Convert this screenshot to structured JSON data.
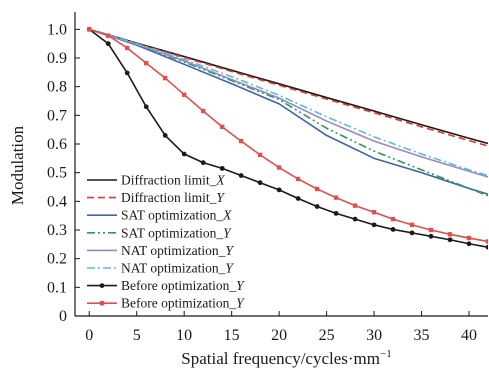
{
  "chart_data": {
    "type": "line",
    "xlabel": "Spatial frequency/cycles·mm",
    "xlabel_sup": "−1",
    "ylabel": "Modulation",
    "xlim": [
      -1.5,
      42
    ],
    "ylim": [
      0,
      1.05
    ],
    "x_ticks": [
      0,
      5,
      10,
      15,
      20,
      25,
      30,
      35,
      40
    ],
    "x_tick_labels": [
      "0",
      "5",
      "10",
      "15",
      "20",
      "25",
      "30",
      "35",
      "40"
    ],
    "y_ticks": [
      0,
      0.1,
      0.2,
      0.3,
      0.4,
      0.5,
      0.6,
      0.7,
      0.8,
      0.9,
      1.0
    ],
    "y_tick_labels": [
      "0",
      "0.1",
      "0.2",
      "0.3",
      "0.4",
      "0.5",
      "0.6",
      "0.7",
      "0.8",
      "0.9",
      "1.0"
    ],
    "grid": false,
    "legend_position": "bottom-left",
    "series": [
      {
        "name": "Diffraction limit_",
        "name_italic": "X",
        "color": "#1a1a1a",
        "dash": "solid",
        "marker": "none",
        "x": [
          0,
          5,
          10,
          15,
          20,
          25,
          30,
          35,
          40,
          42
        ],
        "y": [
          1.0,
          0.952,
          0.905,
          0.857,
          0.81,
          0.762,
          0.715,
          0.667,
          0.62,
          0.602
        ]
      },
      {
        "name": "Diffraction limit_",
        "name_italic": "Y",
        "color": "#e0382c",
        "dash": "dashed",
        "marker": "none",
        "x": [
          0,
          5,
          10,
          15,
          20,
          25,
          30,
          35,
          40,
          42
        ],
        "y": [
          1.0,
          0.95,
          0.902,
          0.853,
          0.805,
          0.757,
          0.709,
          0.66,
          0.612,
          0.593
        ]
      },
      {
        "name": "SAT optimization_",
        "name_italic": "X",
        "color": "#3a64b0",
        "dash": "solid",
        "marker": "none",
        "x": [
          0,
          5,
          10,
          15,
          20,
          25,
          30,
          35,
          40,
          42
        ],
        "y": [
          1.0,
          0.945,
          0.878,
          0.81,
          0.74,
          0.63,
          0.55,
          0.5,
          0.445,
          0.425
        ]
      },
      {
        "name": "SAT optimization_",
        "name_italic": "Y",
        "color": "#2e9b4e",
        "dash": "dashdotdot",
        "marker": "none",
        "x": [
          0,
          5,
          10,
          15,
          20,
          25,
          30,
          35,
          40,
          42
        ],
        "y": [
          1.0,
          0.948,
          0.886,
          0.821,
          0.755,
          0.655,
          0.575,
          0.51,
          0.445,
          0.42
        ]
      },
      {
        "name": "NAT optimization_",
        "name_italic": "Y",
        "color": "#9b86c8",
        "dash": "solid",
        "marker": "none",
        "x": [
          0,
          5,
          10,
          15,
          20,
          25,
          30,
          35,
          40,
          42
        ],
        "y": [
          1.0,
          0.948,
          0.89,
          0.825,
          0.76,
          0.68,
          0.61,
          0.555,
          0.505,
          0.485
        ]
      },
      {
        "name": "NAT optimization_",
        "name_italic": "Y",
        "color": "#56bfd8",
        "dash": "dashdot",
        "marker": "none",
        "x": [
          0,
          5,
          10,
          15,
          20,
          25,
          30,
          35,
          40,
          42
        ],
        "y": [
          1.0,
          0.95,
          0.895,
          0.835,
          0.77,
          0.695,
          0.625,
          0.565,
          0.51,
          0.49
        ]
      },
      {
        "name": "Before optimization_",
        "name_italic": "Y",
        "color": "#1a1a1a",
        "dash": "solid",
        "marker": "circle",
        "x": [
          0,
          2,
          4,
          6,
          8,
          10,
          12,
          14,
          16,
          18,
          20,
          22,
          24,
          26,
          28,
          30,
          32,
          34,
          36,
          38,
          40,
          42
        ],
        "y": [
          1.0,
          0.95,
          0.848,
          0.73,
          0.63,
          0.565,
          0.535,
          0.515,
          0.49,
          0.465,
          0.44,
          0.41,
          0.382,
          0.358,
          0.338,
          0.318,
          0.302,
          0.29,
          0.278,
          0.266,
          0.252,
          0.24
        ]
      },
      {
        "name": "Before optimization_",
        "name_italic": "Y",
        "color": "#e0504a",
        "dash": "solid",
        "marker": "square",
        "x": [
          0,
          2,
          4,
          6,
          8,
          10,
          12,
          14,
          16,
          18,
          20,
          22,
          24,
          26,
          28,
          30,
          32,
          34,
          36,
          38,
          40,
          42
        ],
        "y": [
          1.0,
          0.978,
          0.935,
          0.882,
          0.83,
          0.772,
          0.715,
          0.66,
          0.61,
          0.562,
          0.518,
          0.478,
          0.443,
          0.413,
          0.385,
          0.362,
          0.338,
          0.318,
          0.3,
          0.285,
          0.272,
          0.26
        ]
      }
    ]
  }
}
